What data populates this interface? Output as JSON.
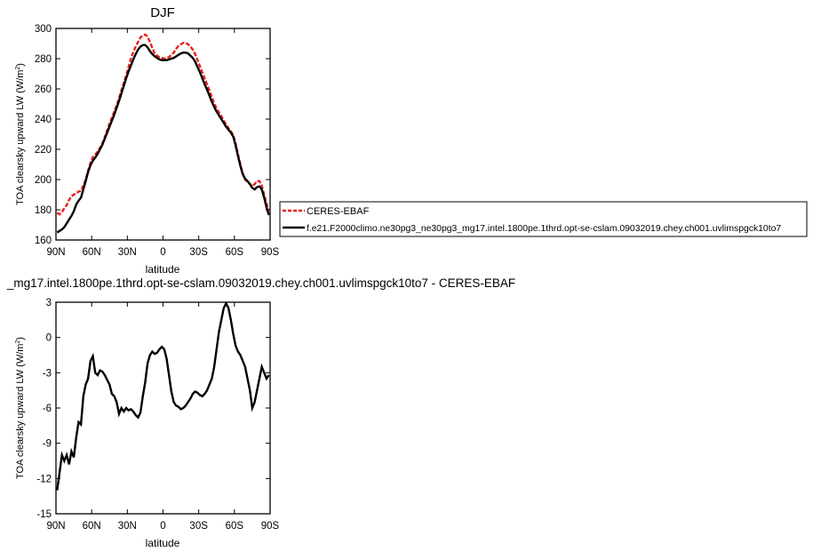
{
  "chart_data": [
    {
      "type": "line",
      "title": "DJF",
      "xlabel": "latitude",
      "ylabel": "TOA clearsky upward LW (W/m",
      "ylabel_sup": "2",
      "ylabel_close": ")",
      "xlim": [
        90,
        -90
      ],
      "ylim": [
        160,
        300
      ],
      "x_ticks": [
        90,
        60,
        30,
        0,
        -30,
        -60,
        -90
      ],
      "x_tick_labels": [
        "90N",
        "60N",
        "30N",
        "0",
        "30S",
        "60S",
        "90S"
      ],
      "y_ticks": [
        160,
        180,
        200,
        220,
        240,
        260,
        280,
        300
      ],
      "y_tick_labels": [
        "160",
        "180",
        "200",
        "220",
        "240",
        "260",
        "280",
        "300"
      ],
      "legend_position": "right",
      "series": [
        {
          "name": "CERES-EBAF",
          "color": "#e8221c",
          "dash": "dashed",
          "x": [
            89,
            87,
            85,
            83,
            81,
            79,
            77,
            75,
            73,
            71,
            69,
            67,
            65,
            63,
            61,
            59,
            57,
            55,
            53,
            51,
            49,
            47,
            45,
            43,
            41,
            39,
            37,
            35,
            33,
            31,
            29,
            27,
            25,
            23,
            21,
            19,
            17,
            15,
            13,
            11,
            9,
            7,
            5,
            3,
            1,
            -1,
            -3,
            -5,
            -7,
            -9,
            -11,
            -13,
            -15,
            -17,
            -19,
            -21,
            -23,
            -25,
            -27,
            -29,
            -31,
            -33,
            -35,
            -37,
            -39,
            -41,
            -43,
            -45,
            -47,
            -49,
            -51,
            -53,
            -55,
            -57,
            -59,
            -61,
            -63,
            -65,
            -67,
            -69,
            -71,
            -73,
            -75,
            -77,
            -79,
            -81,
            -83,
            -85,
            -87,
            -89
          ],
          "y": [
            178.0,
            177.0,
            178.5,
            181.0,
            183.0,
            186.5,
            189.0,
            190.0,
            191.0,
            192.0,
            192.5,
            196.0,
            200.0,
            206.0,
            211.0,
            215.0,
            216.5,
            218.5,
            221.0,
            224.0,
            228.0,
            232.5,
            237.0,
            241.0,
            245.0,
            249.0,
            254.0,
            259.0,
            264.0,
            269.0,
            274.5,
            280.0,
            284.5,
            288.0,
            291.0,
            294.0,
            295.5,
            296.0,
            294.5,
            291.0,
            287.0,
            283.5,
            282.0,
            281.0,
            280.5,
            280.0,
            280.5,
            281.0,
            282.5,
            284.0,
            286.5,
            288.5,
            289.5,
            290.5,
            290.5,
            289.5,
            288.0,
            286.0,
            283.0,
            279.0,
            275.0,
            271.0,
            267.0,
            263.0,
            259.0,
            254.5,
            250.5,
            247.0,
            244.5,
            242.0,
            239.0,
            236.5,
            234.0,
            232.0,
            229.5,
            224.0,
            217.0,
            210.0,
            204.0,
            200.0,
            198.5,
            197.0,
            195.5,
            197.0,
            199.0,
            199.0,
            196.0,
            190.0,
            184.0,
            179.0
          ]
        },
        {
          "name": "f.e21.F2000climo.ne30pg3_ne30pg3_mg17.intel.1800pe.1thrd.opt-se-cslam.09032019.chey.ch001.uvlimspgck10to7",
          "color": "#000000",
          "dash": "solid",
          "x": [
            89,
            87,
            85,
            83,
            81,
            79,
            77,
            75,
            73,
            71,
            69,
            67,
            65,
            63,
            61,
            59,
            57,
            55,
            53,
            51,
            49,
            47,
            45,
            43,
            41,
            39,
            37,
            35,
            33,
            31,
            29,
            27,
            25,
            23,
            21,
            19,
            17,
            15,
            13,
            11,
            9,
            7,
            5,
            3,
            1,
            -1,
            -3,
            -5,
            -7,
            -9,
            -11,
            -13,
            -15,
            -17,
            -19,
            -21,
            -23,
            -25,
            -27,
            -29,
            -31,
            -33,
            -35,
            -37,
            -39,
            -41,
            -43,
            -45,
            -47,
            -49,
            -51,
            -53,
            -55,
            -57,
            -59,
            -61,
            -63,
            -65,
            -67,
            -69,
            -71,
            -73,
            -75,
            -77,
            -79,
            -81,
            -83,
            -85,
            -87,
            -89
          ],
          "y": [
            165.0,
            166.0,
            167.0,
            168.5,
            171.0,
            173.5,
            176.0,
            179.0,
            183.5,
            186.0,
            188.0,
            193.5,
            199.0,
            205.0,
            209.5,
            212.5,
            214.5,
            217.0,
            220.0,
            223.0,
            227.0,
            231.0,
            235.0,
            239.0,
            243.0,
            247.5,
            252.0,
            257.0,
            262.0,
            267.0,
            271.5,
            275.5,
            279.5,
            283.0,
            286.0,
            288.0,
            289.0,
            289.0,
            287.5,
            285.0,
            283.0,
            281.5,
            280.5,
            279.5,
            279.0,
            279.0,
            279.0,
            279.5,
            280.0,
            280.5,
            281.5,
            282.5,
            283.5,
            284.0,
            284.0,
            283.5,
            282.0,
            280.5,
            278.0,
            274.5,
            271.0,
            267.0,
            263.0,
            259.5,
            255.5,
            251.5,
            248.0,
            245.0,
            242.5,
            240.0,
            237.5,
            235.0,
            233.0,
            231.0,
            228.5,
            222.5,
            215.5,
            209.0,
            203.5,
            200.5,
            199.0,
            197.0,
            194.5,
            193.5,
            195.0,
            195.5,
            193.5,
            188.0,
            181.5,
            176.5
          ]
        }
      ]
    },
    {
      "type": "line",
      "title": "_mg17.intel.1800pe.1thrd.opt-se-cslam.09032019.chey.ch001.uvlimspgck10to7 - CERES-EBAF",
      "xlabel": "latitude",
      "ylabel": "TOA clearsky upward LW (W/m",
      "ylabel_sup": "2",
      "ylabel_close": ")",
      "xlim": [
        90,
        -90
      ],
      "ylim": [
        -15,
        3
      ],
      "x_ticks": [
        90,
        60,
        30,
        0,
        -30,
        -60,
        -90
      ],
      "x_tick_labels": [
        "90N",
        "60N",
        "30N",
        "0",
        "30S",
        "60S",
        "90S"
      ],
      "y_ticks": [
        -15,
        -12,
        -9,
        -6,
        -3,
        0,
        3
      ],
      "y_tick_labels": [
        "-15",
        "-12",
        "-9",
        "-6",
        "-3",
        "0",
        "3"
      ],
      "series": [
        {
          "color": "#000000",
          "dash": "solid",
          "x": [
            89,
            87,
            85,
            83,
            81,
            79,
            77,
            75,
            73,
            71,
            69,
            67,
            65,
            63,
            61,
            59,
            57,
            55,
            53,
            51,
            49,
            47,
            45,
            43,
            41,
            39,
            37,
            35,
            33,
            31,
            29,
            27,
            25,
            23,
            21,
            19,
            17,
            15,
            13,
            11,
            9,
            7,
            5,
            3,
            1,
            -1,
            -3,
            -5,
            -7,
            -9,
            -11,
            -13,
            -15,
            -17,
            -19,
            -21,
            -23,
            -25,
            -27,
            -29,
            -31,
            -33,
            -35,
            -37,
            -39,
            -41,
            -43,
            -45,
            -47,
            -49,
            -51,
            -53,
            -55,
            -57,
            -59,
            -61,
            -63,
            -65,
            -67,
            -69,
            -71,
            -73,
            -75,
            -77,
            -79,
            -81,
            -83,
            -85,
            -87,
            -89
          ],
          "y": [
            -13.0,
            -11.5,
            -10.0,
            -10.5,
            -10.0,
            -10.8,
            -9.7,
            -10.2,
            -8.5,
            -7.2,
            -7.4,
            -5.0,
            -4.0,
            -3.5,
            -2.0,
            -1.6,
            -3.0,
            -3.2,
            -2.8,
            -2.9,
            -3.2,
            -3.6,
            -4.0,
            -4.8,
            -5.0,
            -5.5,
            -6.5,
            -6.0,
            -6.3,
            -6.0,
            -6.2,
            -6.1,
            -6.3,
            -6.6,
            -6.8,
            -6.4,
            -5.0,
            -3.8,
            -2.2,
            -1.5,
            -1.2,
            -1.4,
            -1.3,
            -1.0,
            -0.8,
            -1.0,
            -1.8,
            -3.2,
            -4.6,
            -5.5,
            -5.8,
            -5.9,
            -6.1,
            -6.0,
            -5.8,
            -5.5,
            -5.2,
            -4.8,
            -4.6,
            -4.7,
            -4.9,
            -5.0,
            -4.8,
            -4.5,
            -4.0,
            -3.5,
            -2.5,
            -1.0,
            0.5,
            1.5,
            2.5,
            2.9,
            2.5,
            1.5,
            0.3,
            -0.7,
            -1.2,
            -1.5,
            -2.0,
            -2.5,
            -3.5,
            -4.5,
            -6.0,
            -5.5,
            -4.5,
            -3.5,
            -2.5,
            -3.0,
            -3.5,
            -3.2
          ]
        }
      ]
    }
  ]
}
